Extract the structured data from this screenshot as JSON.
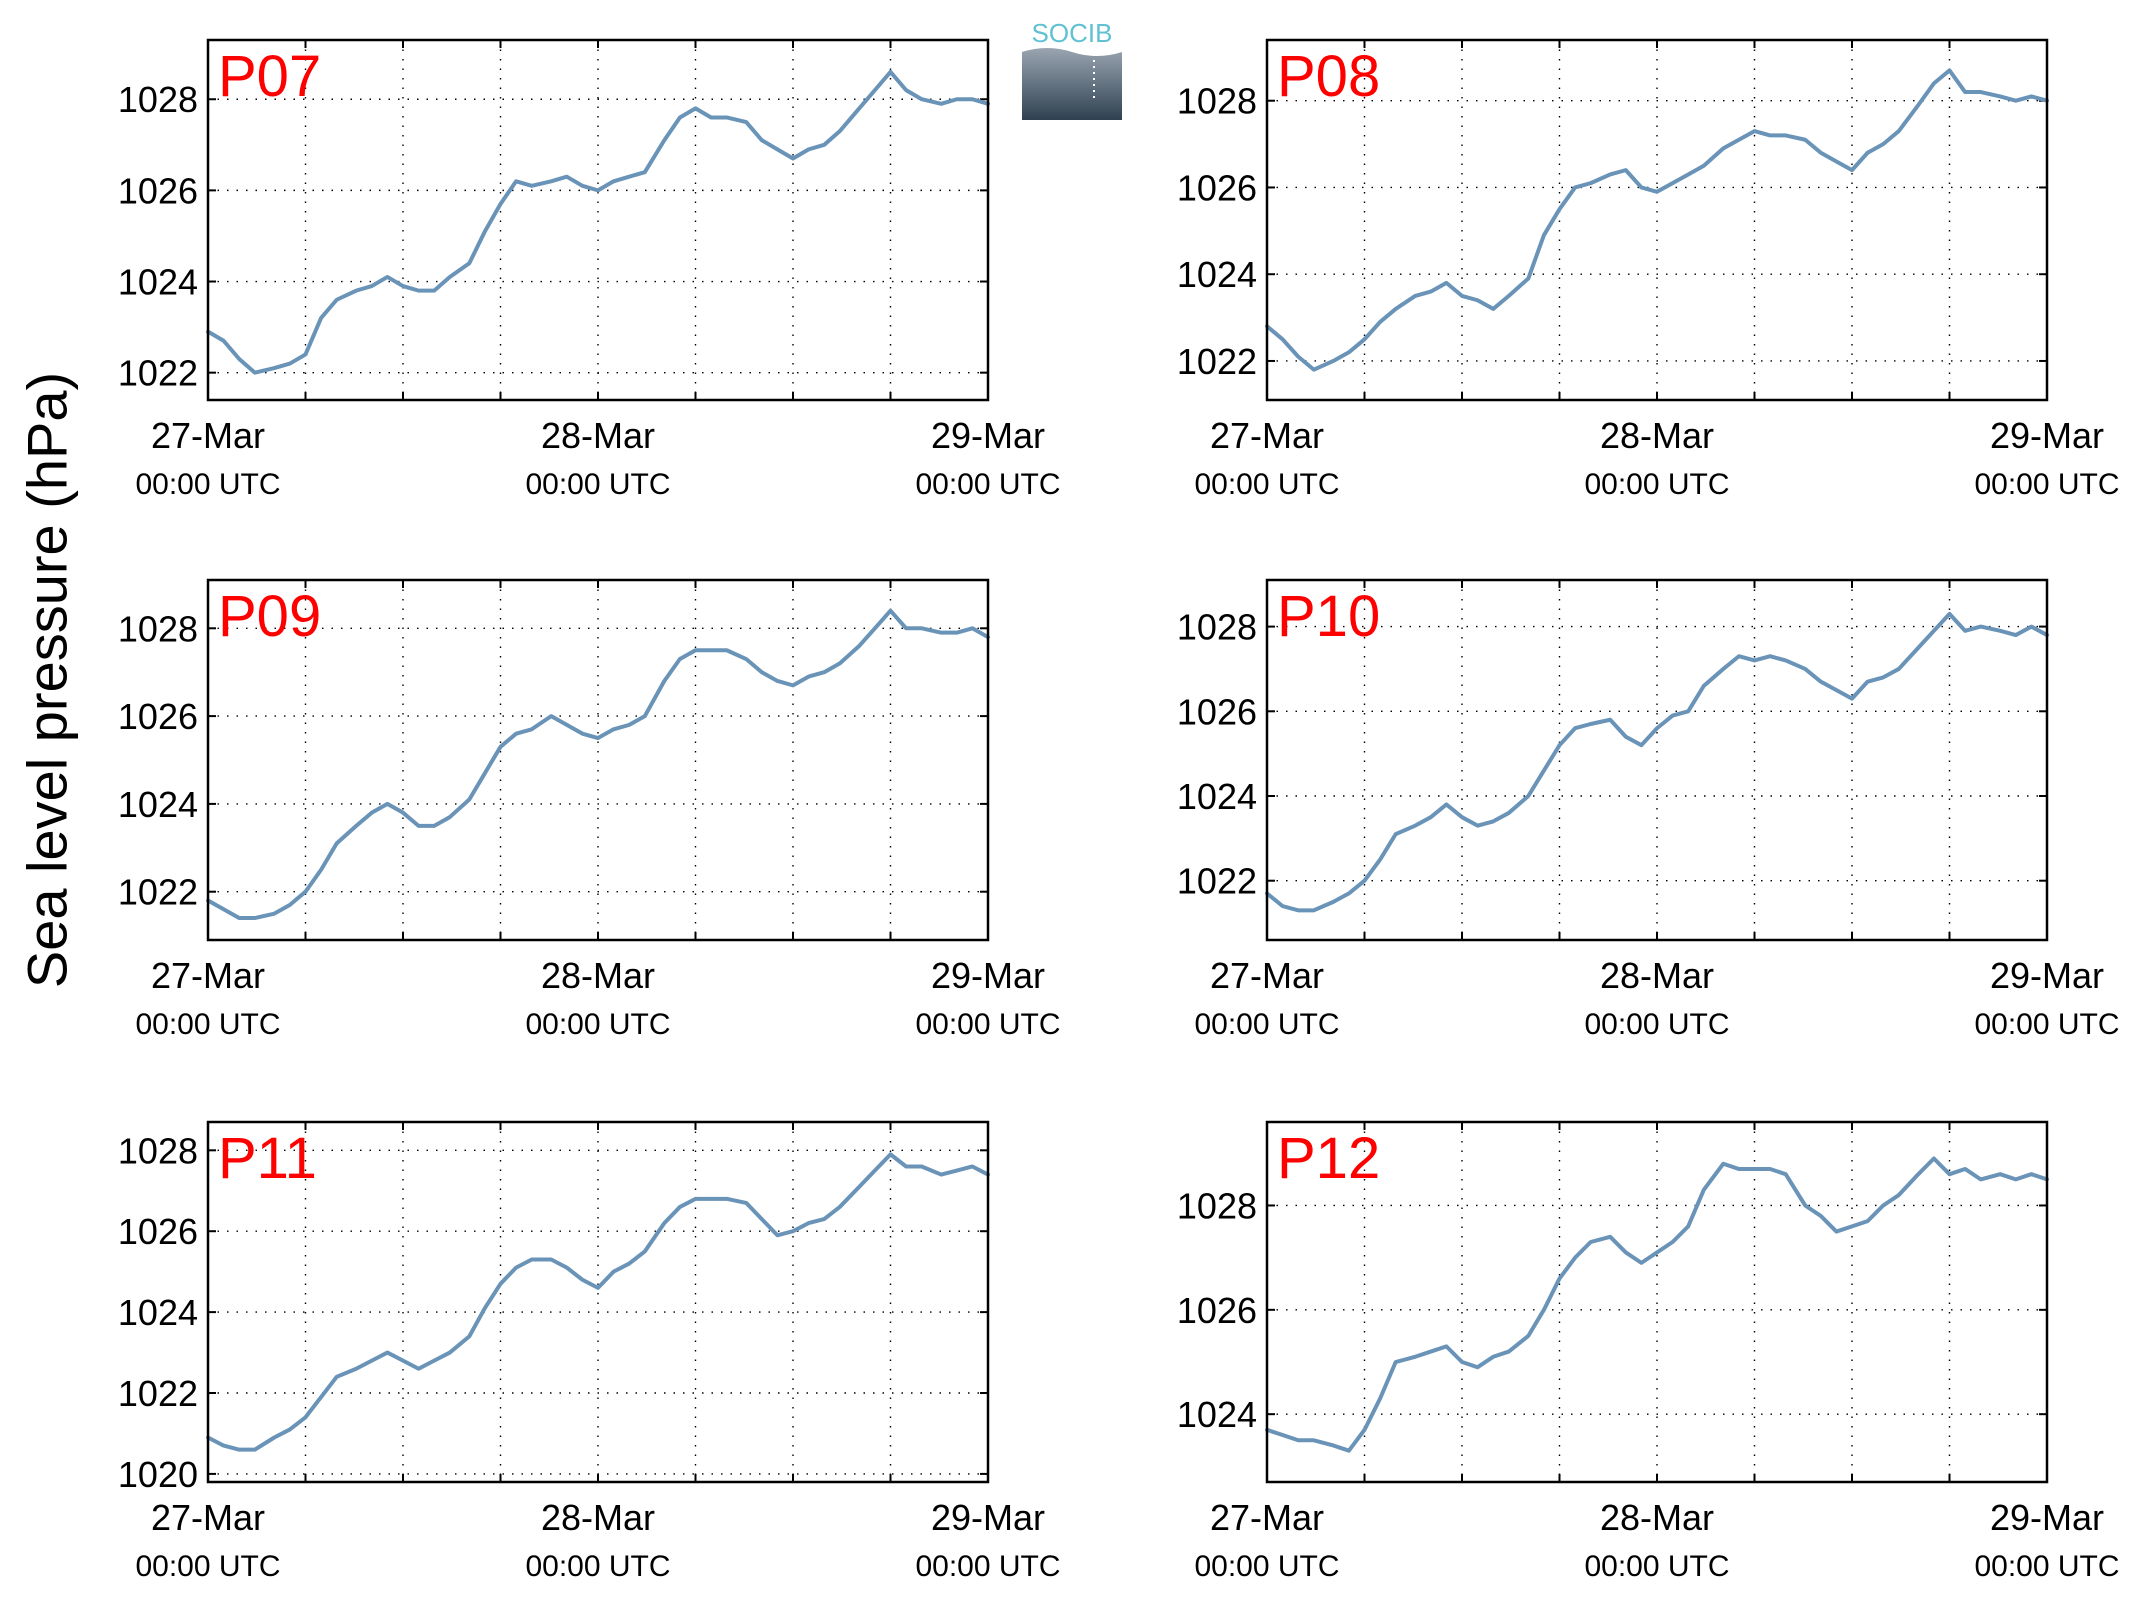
{
  "ylabel": "Sea level pressure (hPa)",
  "logo": {
    "text": "SOCIB",
    "text_color": "#5fc1d3",
    "gradient_top": "#9aa5b1",
    "gradient_bottom": "#2f4150"
  },
  "chart_data": [
    {
      "type": "line",
      "panel_label": "P07",
      "x_ticks": [
        {
          "d": 0,
          "date": "27-Mar",
          "time": "00:00 UTC"
        },
        {
          "d": 1,
          "date": "28-Mar",
          "time": "00:00 UTC"
        },
        {
          "d": 2,
          "date": "29-Mar",
          "time": "00:00 UTC"
        }
      ],
      "ylim": [
        1021.4,
        1029.3
      ],
      "yticks": [
        1022,
        1024,
        1026,
        1028
      ],
      "series": [
        {
          "x_days": [
            0,
            0.04,
            0.08,
            0.12,
            0.17,
            0.21,
            0.25,
            0.29,
            0.33,
            0.38,
            0.42,
            0.46,
            0.5,
            0.54,
            0.58,
            0.62,
            0.67,
            0.71,
            0.75,
            0.79,
            0.83,
            0.88,
            0.92,
            0.96,
            1.0,
            1.04,
            1.08,
            1.12,
            1.17,
            1.21,
            1.25,
            1.29,
            1.33,
            1.38,
            1.42,
            1.46,
            1.5,
            1.54,
            1.58,
            1.62,
            1.67,
            1.71,
            1.75,
            1.79,
            1.83,
            1.88,
            1.92,
            1.96,
            2.0
          ],
          "values": [
            1022.9,
            1022.7,
            1022.3,
            1022.0,
            1022.1,
            1022.2,
            1022.4,
            1023.2,
            1023.6,
            1023.8,
            1023.9,
            1024.1,
            1023.9,
            1023.8,
            1023.8,
            1024.1,
            1024.4,
            1025.1,
            1025.7,
            1026.2,
            1026.1,
            1026.2,
            1026.3,
            1026.1,
            1026.0,
            1026.2,
            1026.3,
            1026.4,
            1027.1,
            1027.6,
            1027.8,
            1027.6,
            1027.6,
            1027.5,
            1027.1,
            1026.9,
            1026.7,
            1026.9,
            1027.0,
            1027.3,
            1027.8,
            1028.2,
            1028.6,
            1028.2,
            1028.0,
            1027.9,
            1028.0,
            1028.0,
            1027.9
          ]
        }
      ]
    },
    {
      "type": "line",
      "panel_label": "P08",
      "x_ticks": [
        {
          "d": 0,
          "date": "27-Mar",
          "time": "00:00 UTC"
        },
        {
          "d": 1,
          "date": "28-Mar",
          "time": "00:00 UTC"
        },
        {
          "d": 2,
          "date": "29-Mar",
          "time": "00:00 UTC"
        }
      ],
      "ylim": [
        1021.1,
        1029.4
      ],
      "yticks": [
        1022,
        1024,
        1026,
        1028
      ],
      "series": [
        {
          "x_days": [
            0,
            0.04,
            0.08,
            0.12,
            0.17,
            0.21,
            0.25,
            0.29,
            0.33,
            0.38,
            0.42,
            0.46,
            0.5,
            0.54,
            0.58,
            0.62,
            0.67,
            0.71,
            0.75,
            0.79,
            0.83,
            0.88,
            0.92,
            0.96,
            1.0,
            1.04,
            1.08,
            1.12,
            1.17,
            1.21,
            1.25,
            1.29,
            1.33,
            1.38,
            1.42,
            1.46,
            1.5,
            1.54,
            1.58,
            1.62,
            1.67,
            1.71,
            1.75,
            1.79,
            1.83,
            1.88,
            1.92,
            1.96,
            2.0
          ],
          "values": [
            1022.8,
            1022.5,
            1022.1,
            1021.8,
            1022.0,
            1022.2,
            1022.5,
            1022.9,
            1023.2,
            1023.5,
            1023.6,
            1023.8,
            1023.5,
            1023.4,
            1023.2,
            1023.5,
            1023.9,
            1024.9,
            1025.5,
            1026.0,
            1026.1,
            1026.3,
            1026.4,
            1026.0,
            1025.9,
            1026.1,
            1026.3,
            1026.5,
            1026.9,
            1027.1,
            1027.3,
            1027.2,
            1027.2,
            1027.1,
            1026.8,
            1026.6,
            1026.4,
            1026.8,
            1027.0,
            1027.3,
            1027.9,
            1028.4,
            1028.7,
            1028.2,
            1028.2,
            1028.1,
            1028.0,
            1028.1,
            1028.0
          ]
        }
      ]
    },
    {
      "type": "line",
      "panel_label": "P09",
      "x_ticks": [
        {
          "d": 0,
          "date": "27-Mar",
          "time": "00:00 UTC"
        },
        {
          "d": 1,
          "date": "28-Mar",
          "time": "00:00 UTC"
        },
        {
          "d": 2,
          "date": "29-Mar",
          "time": "00:00 UTC"
        }
      ],
      "ylim": [
        1020.9,
        1029.1
      ],
      "yticks": [
        1022,
        1024,
        1026,
        1028
      ],
      "series": [
        {
          "x_days": [
            0,
            0.04,
            0.08,
            0.12,
            0.17,
            0.21,
            0.25,
            0.29,
            0.33,
            0.38,
            0.42,
            0.46,
            0.5,
            0.54,
            0.58,
            0.62,
            0.67,
            0.71,
            0.75,
            0.79,
            0.83,
            0.88,
            0.92,
            0.96,
            1.0,
            1.04,
            1.08,
            1.12,
            1.17,
            1.21,
            1.25,
            1.29,
            1.33,
            1.38,
            1.42,
            1.46,
            1.5,
            1.54,
            1.58,
            1.62,
            1.67,
            1.71,
            1.75,
            1.79,
            1.83,
            1.88,
            1.92,
            1.96,
            2.0
          ],
          "values": [
            1021.8,
            1021.6,
            1021.4,
            1021.4,
            1021.5,
            1021.7,
            1022.0,
            1022.5,
            1023.1,
            1023.5,
            1023.8,
            1024.0,
            1023.8,
            1023.5,
            1023.5,
            1023.7,
            1024.1,
            1024.7,
            1025.3,
            1025.6,
            1025.7,
            1026.0,
            1025.8,
            1025.6,
            1025.5,
            1025.7,
            1025.8,
            1026.0,
            1026.8,
            1027.3,
            1027.5,
            1027.5,
            1027.5,
            1027.3,
            1027.0,
            1026.8,
            1026.7,
            1026.9,
            1027.0,
            1027.2,
            1027.6,
            1028.0,
            1028.4,
            1028.0,
            1028.0,
            1027.9,
            1027.9,
            1028.0,
            1027.8
          ]
        }
      ]
    },
    {
      "type": "line",
      "panel_label": "P10",
      "x_ticks": [
        {
          "d": 0,
          "date": "27-Mar",
          "time": "00:00 UTC"
        },
        {
          "d": 1,
          "date": "28-Mar",
          "time": "00:00 UTC"
        },
        {
          "d": 2,
          "date": "29-Mar",
          "time": "00:00 UTC"
        }
      ],
      "ylim": [
        1020.6,
        1029.1
      ],
      "yticks": [
        1022,
        1024,
        1026,
        1028
      ],
      "series": [
        {
          "x_days": [
            0,
            0.04,
            0.08,
            0.12,
            0.17,
            0.21,
            0.25,
            0.29,
            0.33,
            0.38,
            0.42,
            0.46,
            0.5,
            0.54,
            0.58,
            0.62,
            0.67,
            0.71,
            0.75,
            0.79,
            0.83,
            0.88,
            0.92,
            0.96,
            1.0,
            1.04,
            1.08,
            1.12,
            1.17,
            1.21,
            1.25,
            1.29,
            1.33,
            1.38,
            1.42,
            1.46,
            1.5,
            1.54,
            1.58,
            1.62,
            1.67,
            1.71,
            1.75,
            1.79,
            1.83,
            1.88,
            1.92,
            1.96,
            2.0
          ],
          "values": [
            1021.7,
            1021.4,
            1021.3,
            1021.3,
            1021.5,
            1021.7,
            1022.0,
            1022.5,
            1023.1,
            1023.3,
            1023.5,
            1023.8,
            1023.5,
            1023.3,
            1023.4,
            1023.6,
            1024.0,
            1024.6,
            1025.2,
            1025.6,
            1025.7,
            1025.8,
            1025.4,
            1025.2,
            1025.6,
            1025.9,
            1026.0,
            1026.6,
            1027.0,
            1027.3,
            1027.2,
            1027.3,
            1027.2,
            1027.0,
            1026.7,
            1026.5,
            1026.3,
            1026.7,
            1026.8,
            1027.0,
            1027.5,
            1027.9,
            1028.3,
            1027.9,
            1028.0,
            1027.9,
            1027.8,
            1028.0,
            1027.8
          ]
        }
      ]
    },
    {
      "type": "line",
      "panel_label": "P11",
      "x_ticks": [
        {
          "d": 0,
          "date": "27-Mar",
          "time": "00:00 UTC"
        },
        {
          "d": 1,
          "date": "28-Mar",
          "time": "00:00 UTC"
        },
        {
          "d": 2,
          "date": "29-Mar",
          "time": "00:00 UTC"
        }
      ],
      "ylim": [
        1019.8,
        1028.7
      ],
      "yticks": [
        1020,
        1022,
        1024,
        1026,
        1028
      ],
      "series": [
        {
          "x_days": [
            0,
            0.04,
            0.08,
            0.12,
            0.17,
            0.21,
            0.25,
            0.29,
            0.33,
            0.38,
            0.42,
            0.46,
            0.5,
            0.54,
            0.58,
            0.62,
            0.67,
            0.71,
            0.75,
            0.79,
            0.83,
            0.88,
            0.92,
            0.96,
            1.0,
            1.04,
            1.08,
            1.12,
            1.17,
            1.21,
            1.25,
            1.29,
            1.33,
            1.38,
            1.42,
            1.46,
            1.5,
            1.54,
            1.58,
            1.62,
            1.67,
            1.71,
            1.75,
            1.79,
            1.83,
            1.88,
            1.92,
            1.96,
            2.0
          ],
          "values": [
            1020.9,
            1020.7,
            1020.6,
            1020.6,
            1020.9,
            1021.1,
            1021.4,
            1021.9,
            1022.4,
            1022.6,
            1022.8,
            1023.0,
            1022.8,
            1022.6,
            1022.8,
            1023.0,
            1023.4,
            1024.1,
            1024.7,
            1025.1,
            1025.3,
            1025.3,
            1025.1,
            1024.8,
            1024.6,
            1025.0,
            1025.2,
            1025.5,
            1026.2,
            1026.6,
            1026.8,
            1026.8,
            1026.8,
            1026.7,
            1026.3,
            1025.9,
            1026.0,
            1026.2,
            1026.3,
            1026.6,
            1027.1,
            1027.5,
            1027.9,
            1027.6,
            1027.6,
            1027.4,
            1027.5,
            1027.6,
            1027.4
          ]
        }
      ]
    },
    {
      "type": "line",
      "panel_label": "P12",
      "x_ticks": [
        {
          "d": 0,
          "date": "27-Mar",
          "time": "00:00 UTC"
        },
        {
          "d": 1,
          "date": "28-Mar",
          "time": "00:00 UTC"
        },
        {
          "d": 2,
          "date": "29-Mar",
          "time": "00:00 UTC"
        }
      ],
      "ylim": [
        1022.7,
        1029.6
      ],
      "yticks": [
        1024,
        1026,
        1028
      ],
      "series": [
        {
          "x_days": [
            0,
            0.04,
            0.08,
            0.12,
            0.17,
            0.21,
            0.25,
            0.29,
            0.33,
            0.38,
            0.42,
            0.46,
            0.5,
            0.54,
            0.58,
            0.62,
            0.67,
            0.71,
            0.75,
            0.79,
            0.83,
            0.88,
            0.92,
            0.96,
            1.0,
            1.04,
            1.08,
            1.12,
            1.17,
            1.21,
            1.25,
            1.29,
            1.33,
            1.38,
            1.42,
            1.46,
            1.5,
            1.54,
            1.58,
            1.62,
            1.67,
            1.71,
            1.75,
            1.79,
            1.83,
            1.88,
            1.92,
            1.96,
            2.0
          ],
          "values": [
            1023.7,
            1023.6,
            1023.5,
            1023.5,
            1023.4,
            1023.3,
            1023.7,
            1024.3,
            1025.0,
            1025.1,
            1025.2,
            1025.3,
            1025.0,
            1024.9,
            1025.1,
            1025.2,
            1025.5,
            1026.0,
            1026.6,
            1027.0,
            1027.3,
            1027.4,
            1027.1,
            1026.9,
            1027.1,
            1027.3,
            1027.6,
            1028.3,
            1028.8,
            1028.7,
            1028.7,
            1028.7,
            1028.6,
            1028.0,
            1027.8,
            1027.5,
            1027.6,
            1027.7,
            1028.0,
            1028.2,
            1028.6,
            1028.9,
            1028.6,
            1028.7,
            1028.5,
            1028.6,
            1028.5,
            1028.6,
            1028.5
          ]
        }
      ]
    }
  ]
}
